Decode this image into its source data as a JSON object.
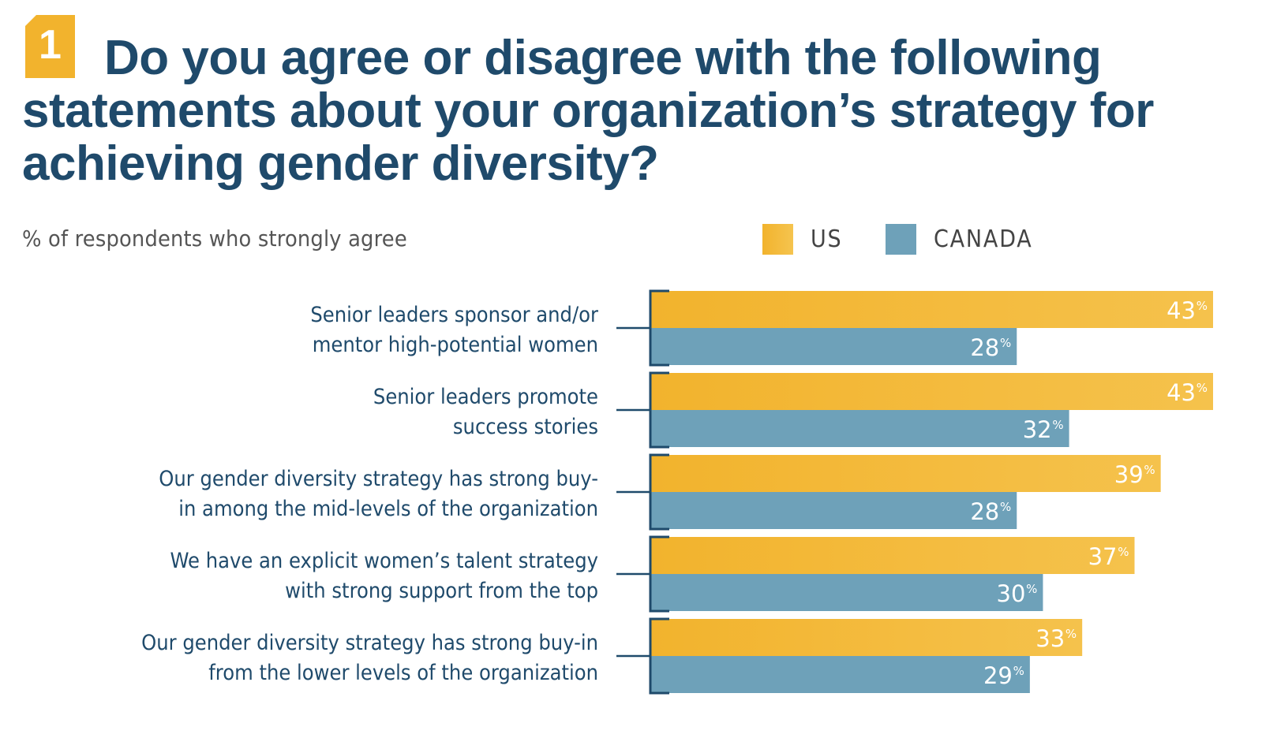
{
  "header": {
    "badge_number": "1",
    "title": "Do you agree or disagree with the following statements about your organization’s strategy for achieving gender diversity?",
    "subtitle": "% of respondents who strongly agree"
  },
  "colors": {
    "us": "#f2b32d",
    "canada": "#6ea1b9",
    "text": "#1f4a6b",
    "bracket": "#1f4a6b"
  },
  "chart_data": {
    "type": "bar",
    "orientation": "horizontal",
    "title": "Do you agree or disagree with the following statements about your organization’s strategy for achieving gender diversity?",
    "subtitle": "% of respondents who strongly agree",
    "xlabel": "",
    "ylabel": "",
    "value_suffix": "%",
    "xlim": [
      0,
      43
    ],
    "grid": false,
    "legend_position": "top-right",
    "categories": [
      [
        "Senior leaders sponsor and/or",
        "mentor high-potential women"
      ],
      [
        "Senior leaders promote",
        "success stories"
      ],
      [
        "Our gender diversity strategy has strong buy-",
        "in among the mid-levels of the organization"
      ],
      [
        "We have an explicit women’s talent strategy",
        "with strong support from the top"
      ],
      [
        "Our gender diversity strategy has strong buy-in",
        "from the lower levels of the organization"
      ]
    ],
    "series": [
      {
        "name": "US",
        "values": [
          43,
          43,
          39,
          37,
          33
        ]
      },
      {
        "name": "CANADA",
        "values": [
          28,
          32,
          28,
          30,
          29
        ]
      }
    ]
  }
}
